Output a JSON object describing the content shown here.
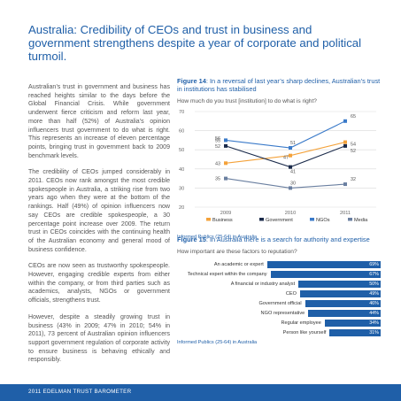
{
  "title": "Australia: Credibility of CEOs and trust in business and government strengthens despite a year of corporate and political turmoil.",
  "body": {
    "p1": "Australian’s trust in government and business has reached heights similar to the days before the Global Financial Crisis. While government underwent fierce criticism and reform last year, more than half (52%) of Australia’s opinion influencers trust government to do what is right. This represents an increase of eleven percentage points, bringing trust in government back to 2009 benchmark levels.",
    "p2": "The credibility of CEOs jumped considerably in 2011. CEOs now rank amongst the most credible spokespeople in Australia, a striking rise from two years ago when they were at the bottom of the rankings. Half (49%) of opinion influencers now say CEOs are credible spokespeople, a 30 percentage point increase over 2009. The return trust in CEOs coincides with the continuing health of the Australian economy and general mood of business confidence.",
    "p3": "CEOs are now seen as trustworthy spokespeople. However, engaging credible experts from either within the company, or from third parties such as academics, analysts, NGOs or government officials, strengthens trust.",
    "p4": "However, despite a steadily growing trust in business (43% in 2009; 47% in 2010; 54% in 2011), 73 percent of Australian opinion influencers support government regulation of corporate activity to ensure business is behaving ethically and responsibly."
  },
  "fig14": {
    "label": "Figure 14",
    "title": ": In a reversal of last year’s sharp declines, Australian’s trust in institutions has stabilised",
    "question": "How much do you trust [institution] to do what is right?",
    "source": "Informed Publics (25-64) in Australia"
  },
  "fig15": {
    "label": "Figure 15",
    "title": ": In Australia there is a search for authority and expertise",
    "question": "How important are these factors to reputation?",
    "source": "Informed Publics (25-64) in Australia"
  },
  "footer": "2011 EDELMAN TRUST BAROMETER",
  "colors": {
    "brand": "#1f5fa8",
    "business": "#f4a23a",
    "government": "#1a2a4a",
    "ngos": "#3a7ac9",
    "media": "#6a7fa0"
  },
  "chart_data": [
    {
      "type": "line",
      "x": [
        "2009",
        "2010",
        "2011"
      ],
      "ylim": [
        20,
        70
      ],
      "yticks": [
        20,
        30,
        40,
        50,
        60,
        70
      ],
      "series": [
        {
          "name": "Business",
          "values": [
            43,
            47,
            54
          ]
        },
        {
          "name": "Government",
          "values": [
            52,
            41,
            52
          ]
        },
        {
          "name": "NGOs",
          "values": [
            55,
            51,
            65
          ]
        },
        {
          "name": "Media",
          "values": [
            35,
            30,
            32
          ]
        }
      ],
      "extra_labels": [
        {
          "x": "2009",
          "text": "56"
        }
      ],
      "legend": "bottom"
    },
    {
      "type": "bar",
      "orientation": "horizontal",
      "categories": [
        "An academic or expert",
        "Technical expert within the company",
        "A financial or industry analyst",
        "CEO",
        "Government official",
        "NGO representative",
        "Regular employee",
        "Person like yourself"
      ],
      "values": [
        69,
        67,
        50,
        49,
        46,
        44,
        34,
        31
      ],
      "value_labels": [
        "69%",
        "67%",
        "50%",
        "49%",
        "46%",
        "44%",
        "34%",
        "31%"
      ]
    }
  ]
}
